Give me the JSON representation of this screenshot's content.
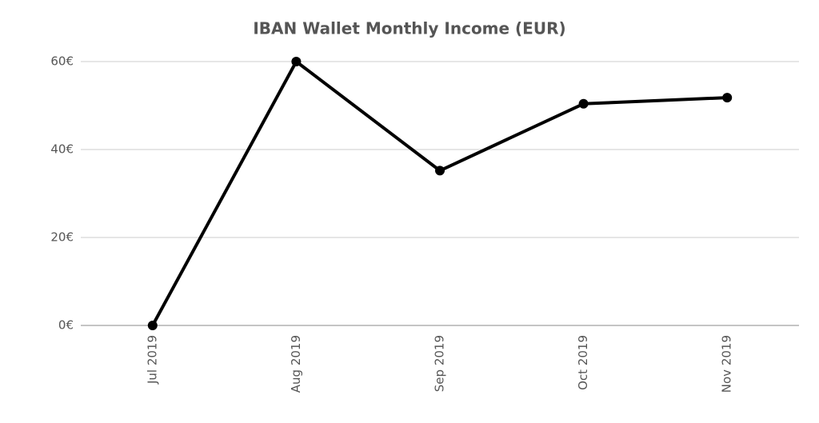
{
  "chart_data": {
    "type": "line",
    "title": "IBAN Wallet Monthly Income (EUR)",
    "categories": [
      "Jul 2019",
      "Aug 2019",
      "Sep 2019",
      "Oct 2019",
      "Nov 2019"
    ],
    "values": [
      0,
      60,
      35.2,
      50.4,
      51.8
    ],
    "color": "#000000",
    "ylim": [
      0,
      60
    ],
    "yticks": [
      {
        "value": 0,
        "label": "0€"
      },
      {
        "value": 20,
        "label": "20€"
      },
      {
        "value": 40,
        "label": "40€"
      },
      {
        "value": 60,
        "label": "60€"
      }
    ],
    "grid": true
  }
}
